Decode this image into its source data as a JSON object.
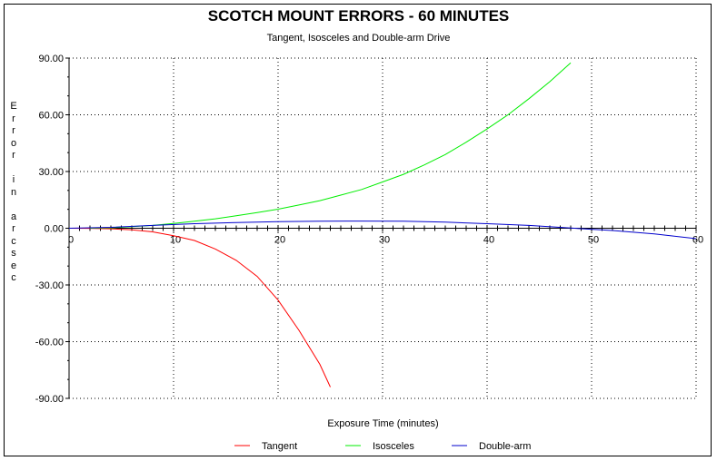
{
  "chart_data": {
    "type": "line",
    "title": "SCOTCH MOUNT ERRORS - 60 MINUTES",
    "subtitle": "Tangent, Isosceles and Double-arm Drive",
    "xlabel": "Exposure Time (minutes)",
    "ylabel": "Error in arcsec",
    "xlim": [
      0,
      60
    ],
    "ylim": [
      -90,
      90
    ],
    "x_ticks": [
      "0",
      "10",
      "20",
      "30",
      "40",
      "50",
      "60"
    ],
    "y_ticks": [
      "90.00",
      "60.00",
      "30.00",
      "0.00",
      "-30.00",
      "-60.00",
      "-90.00"
    ],
    "grid": true,
    "legend_position": "bottom",
    "series": [
      {
        "name": "Tangent",
        "color": "#ff0000",
        "x": [
          0,
          2,
          4,
          6,
          8,
          10,
          12,
          14,
          16,
          18,
          20,
          22,
          24,
          25
        ],
        "y": [
          0,
          -0.04,
          -0.3,
          -0.8,
          -1.9,
          -4.0,
          -6.5,
          -11.0,
          -17.0,
          -25.5,
          -38.0,
          -54.0,
          -72.0,
          -84.0
        ]
      },
      {
        "name": "Isosceles",
        "color": "#00ee00",
        "x": [
          2,
          4,
          6,
          8,
          10,
          12,
          14,
          16,
          18,
          20,
          22,
          24,
          26,
          28,
          30,
          32,
          34,
          36,
          38,
          40,
          42,
          44,
          46,
          48
        ],
        "y": [
          0.05,
          0.25,
          0.8,
          1.5,
          2.5,
          3.7,
          5.0,
          6.6,
          8.3,
          10.1,
          12.3,
          14.6,
          17.5,
          20.5,
          24.5,
          28.5,
          33.5,
          39.0,
          45.5,
          52.5,
          60.0,
          68.5,
          77.5,
          87.5
        ]
      },
      {
        "name": "Double-arm",
        "color": "#0000cc",
        "x": [
          0,
          4,
          8,
          12,
          16,
          20,
          24,
          28,
          32,
          36,
          40,
          44,
          48,
          52,
          56,
          60
        ],
        "y": [
          0,
          0.5,
          1.5,
          2.4,
          3.0,
          3.5,
          3.7,
          3.8,
          3.7,
          3.2,
          2.4,
          1.5,
          0.1,
          -1.2,
          -3.0,
          -5.5
        ]
      }
    ]
  }
}
